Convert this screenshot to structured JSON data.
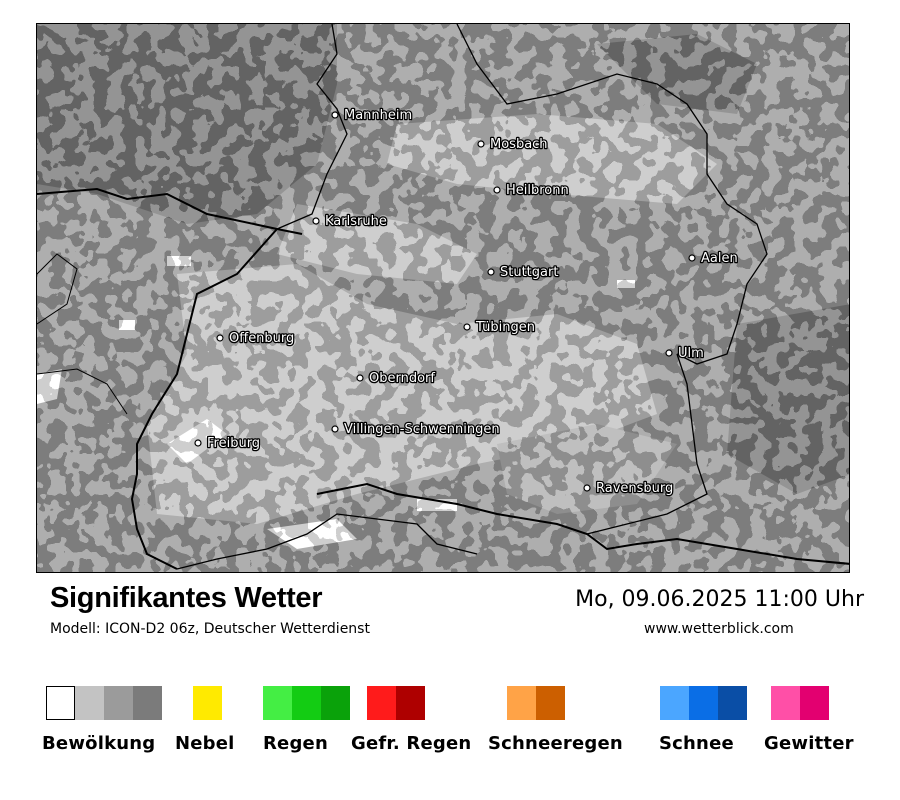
{
  "map": {
    "cities": [
      {
        "name": "Mannheim"
      },
      {
        "name": "Mosbach"
      },
      {
        "name": "Heilbronn"
      },
      {
        "name": "Karlsruhe"
      },
      {
        "name": "Stuttgart"
      },
      {
        "name": "Aalen"
      },
      {
        "name": "Offenburg"
      },
      {
        "name": "Tübingen"
      },
      {
        "name": "Ulm"
      },
      {
        "name": "Oberndorf"
      },
      {
        "name": "Villingen-Schwenningen"
      },
      {
        "name": "Freiburg"
      },
      {
        "name": "Ravensburg"
      }
    ]
  },
  "header": {
    "title": "Signifikantes Wetter",
    "subtitle": "Modell: ICON-D2 06z, Deutscher Wetterdienst",
    "datetime": "Mo, 09.06.2025 11:00 Uhr",
    "website": "www.wetterblick.com"
  },
  "legend": [
    {
      "label": "Bewölkung",
      "colors": [
        "#ffffff",
        "#c3c3c3",
        "#9b9b9b",
        "#7b7b7b"
      ]
    },
    {
      "label": "Nebel",
      "colors": [
        "#ffea00"
      ]
    },
    {
      "label": "Regen",
      "colors": [
        "#44ee44",
        "#13cc13",
        "#0aa20a"
      ]
    },
    {
      "label": "Gefr. Regen",
      "colors": [
        "#ff1b1b",
        "#ae0000"
      ]
    },
    {
      "label": "Schneeregen",
      "colors": [
        "#ffa347",
        "#cc5f00"
      ]
    },
    {
      "label": "Schnee",
      "colors": [
        "#4ba6ff",
        "#0a6ee6",
        "#0a4ea6"
      ]
    },
    {
      "label": "Gewitter",
      "colors": [
        "#ff4fa7",
        "#e30070"
      ]
    }
  ]
}
